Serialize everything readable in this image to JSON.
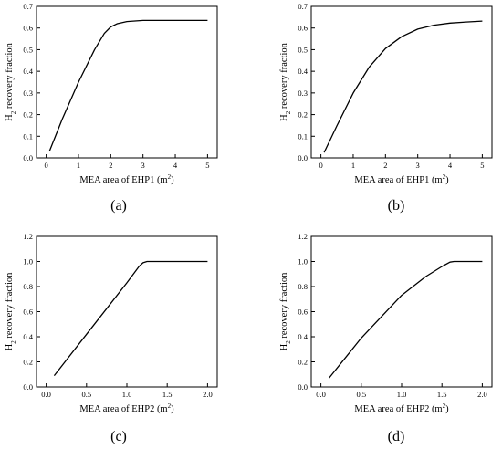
{
  "chart_data": [
    {
      "type": "line",
      "panel_label": "(a)",
      "xlabel": "MEA area of EHP1 (m²)",
      "ylabel": "H₂ recovery fraction",
      "xlim": [
        -0.3,
        5.3
      ],
      "ylim": [
        0.0,
        0.7
      ],
      "xticks": [
        "0",
        "1",
        "2",
        "3",
        "4",
        "5"
      ],
      "yticks": [
        "0.0",
        "0.1",
        "0.2",
        "0.3",
        "0.4",
        "0.5",
        "0.6",
        "0.7"
      ],
      "series": [
        {
          "x": [
            0.1,
            0.5,
            1.0,
            1.5,
            1.8,
            2.0,
            2.2,
            2.5,
            3.0,
            3.5,
            4.0,
            5.0
          ],
          "y": [
            0.03,
            0.18,
            0.35,
            0.5,
            0.575,
            0.605,
            0.62,
            0.63,
            0.635,
            0.635,
            0.635,
            0.635
          ]
        }
      ]
    },
    {
      "type": "line",
      "panel_label": "(b)",
      "xlabel": "MEA area of EHP1 (m²)",
      "ylabel": "H₂ recovery fraction",
      "xlim": [
        -0.3,
        5.3
      ],
      "ylim": [
        0.0,
        0.7
      ],
      "xticks": [
        "0",
        "1",
        "2",
        "3",
        "4",
        "5"
      ],
      "yticks": [
        "0.0",
        "0.1",
        "0.2",
        "0.3",
        "0.4",
        "0.5",
        "0.6",
        "0.7"
      ],
      "series": [
        {
          "x": [
            0.1,
            0.5,
            1.0,
            1.5,
            2.0,
            2.5,
            3.0,
            3.5,
            4.0,
            4.5,
            5.0
          ],
          "y": [
            0.025,
            0.15,
            0.3,
            0.42,
            0.505,
            0.56,
            0.595,
            0.613,
            0.623,
            0.628,
            0.632
          ]
        }
      ]
    },
    {
      "type": "line",
      "panel_label": "(c)",
      "xlabel": "MEA area of EHP2 (m²)",
      "ylabel": "H₂ recovery fraction",
      "xlim": [
        -0.12,
        2.12
      ],
      "ylim": [
        0.0,
        1.2
      ],
      "xticks": [
        "0.0",
        "0.5",
        "1.0",
        "1.5",
        "2.0"
      ],
      "yticks": [
        "0.0",
        "0.2",
        "0.4",
        "0.6",
        "0.8",
        "1.0",
        "1.2"
      ],
      "series": [
        {
          "x": [
            0.1,
            0.5,
            1.0,
            1.15,
            1.2,
            1.25,
            1.5,
            2.0
          ],
          "y": [
            0.09,
            0.42,
            0.83,
            0.96,
            0.99,
            1.0,
            1.0,
            1.0
          ]
        }
      ]
    },
    {
      "type": "line",
      "panel_label": "(d)",
      "xlabel": "MEA area of EHP2 (m²)",
      "ylabel": "H₂ recovery fraction",
      "xlim": [
        -0.12,
        2.12
      ],
      "ylim": [
        0.0,
        1.2
      ],
      "xticks": [
        "0.0",
        "0.5",
        "1.0",
        "1.5",
        "2.0"
      ],
      "yticks": [
        "0.0",
        "0.2",
        "0.4",
        "0.6",
        "0.8",
        "1.0",
        "1.2"
      ],
      "series": [
        {
          "x": [
            0.1,
            0.5,
            1.0,
            1.3,
            1.5,
            1.6,
            1.65,
            2.0
          ],
          "y": [
            0.07,
            0.39,
            0.73,
            0.88,
            0.96,
            0.995,
            1.0,
            1.0
          ]
        }
      ]
    }
  ]
}
